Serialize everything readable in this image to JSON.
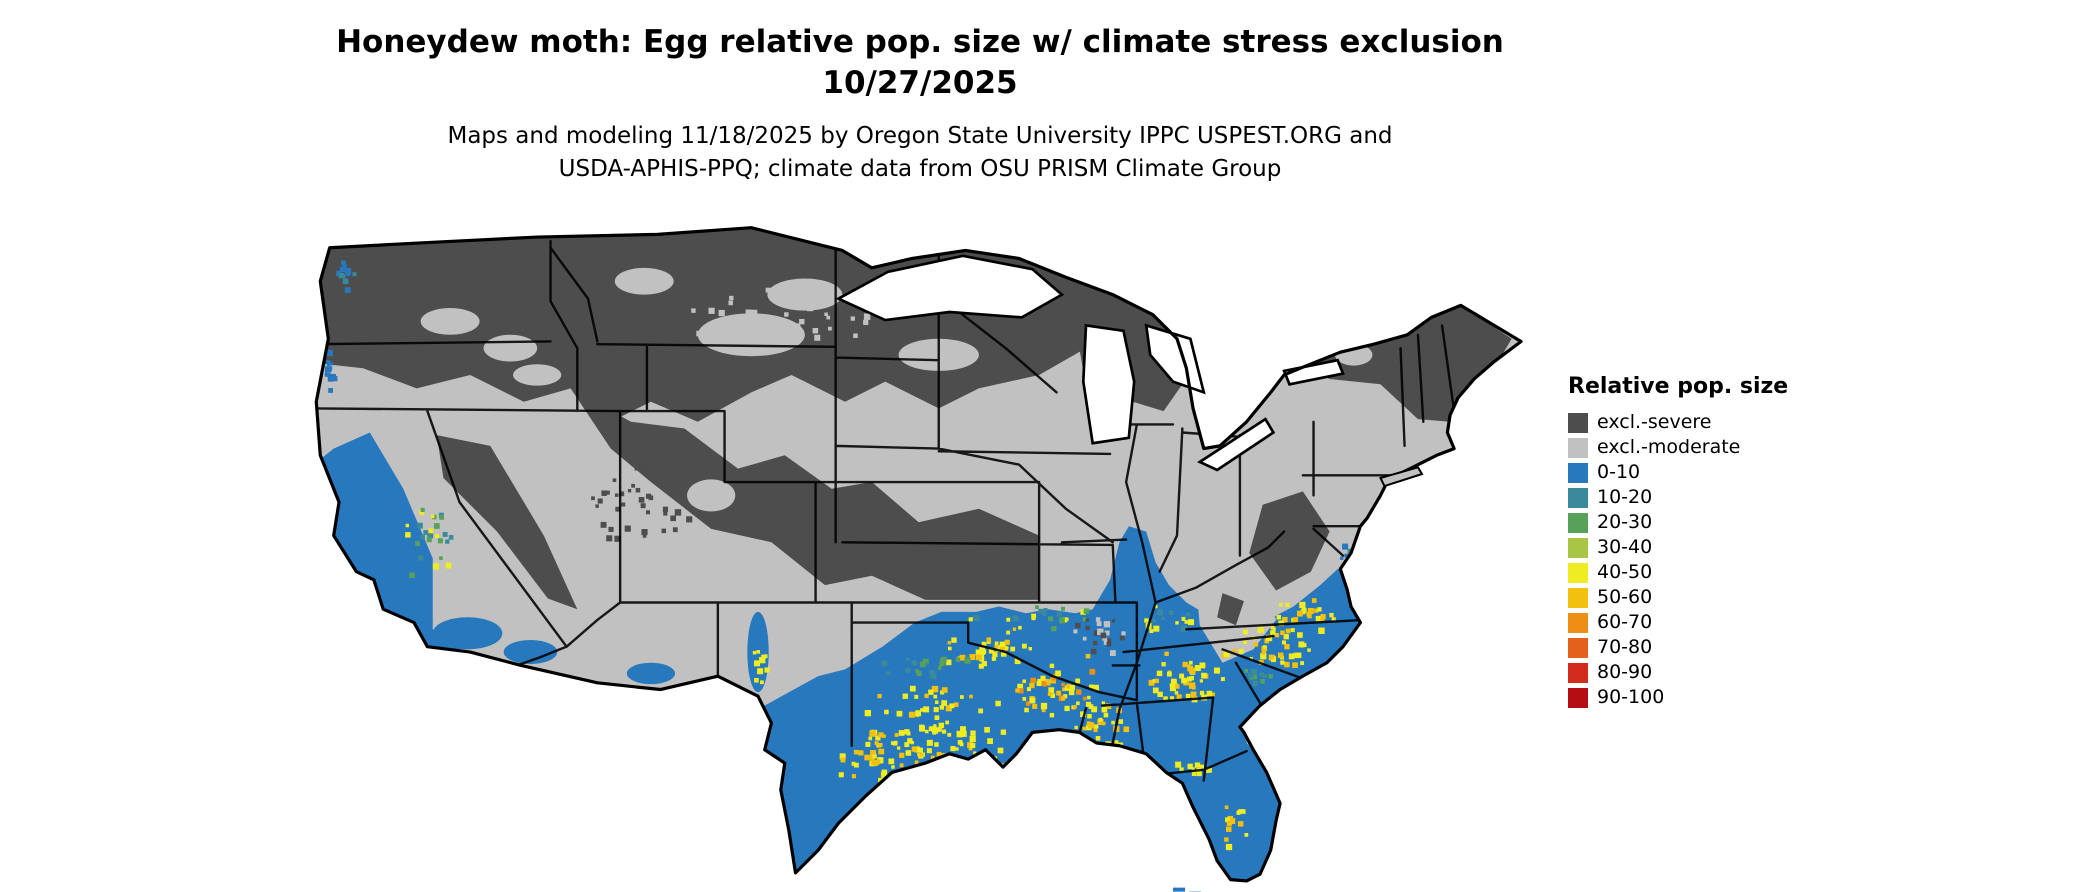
{
  "title": {
    "line1": "Honeydew moth: Egg relative pop. size w/ climate stress exclusion",
    "line2": "10/27/2025"
  },
  "subtitle": {
    "line1": "Maps and modeling 11/18/2025 by Oregon State University IPPC USPEST.ORG and",
    "line2": "USDA-APHIS-PPQ; climate data from OSU PRISM Climate Group"
  },
  "legend": {
    "title": "Relative pop. size",
    "entries": [
      {
        "label": "excl.-severe",
        "color": "#4d4d4d"
      },
      {
        "label": "excl.-moderate",
        "color": "#c1c1c1"
      },
      {
        "label": "0-10",
        "color": "#2878bd"
      },
      {
        "label": "10-20",
        "color": "#3a8a9b"
      },
      {
        "label": "20-30",
        "color": "#57a258"
      },
      {
        "label": "30-40",
        "color": "#a9c544"
      },
      {
        "label": "40-50",
        "color": "#efec21"
      },
      {
        "label": "50-60",
        "color": "#f2c00e"
      },
      {
        "label": "60-70",
        "color": "#ee8f13"
      },
      {
        "label": "70-80",
        "color": "#e4611b"
      },
      {
        "label": "80-90",
        "color": "#d32b1e"
      },
      {
        "label": "90-100",
        "color": "#b50d12"
      }
    ]
  }
}
